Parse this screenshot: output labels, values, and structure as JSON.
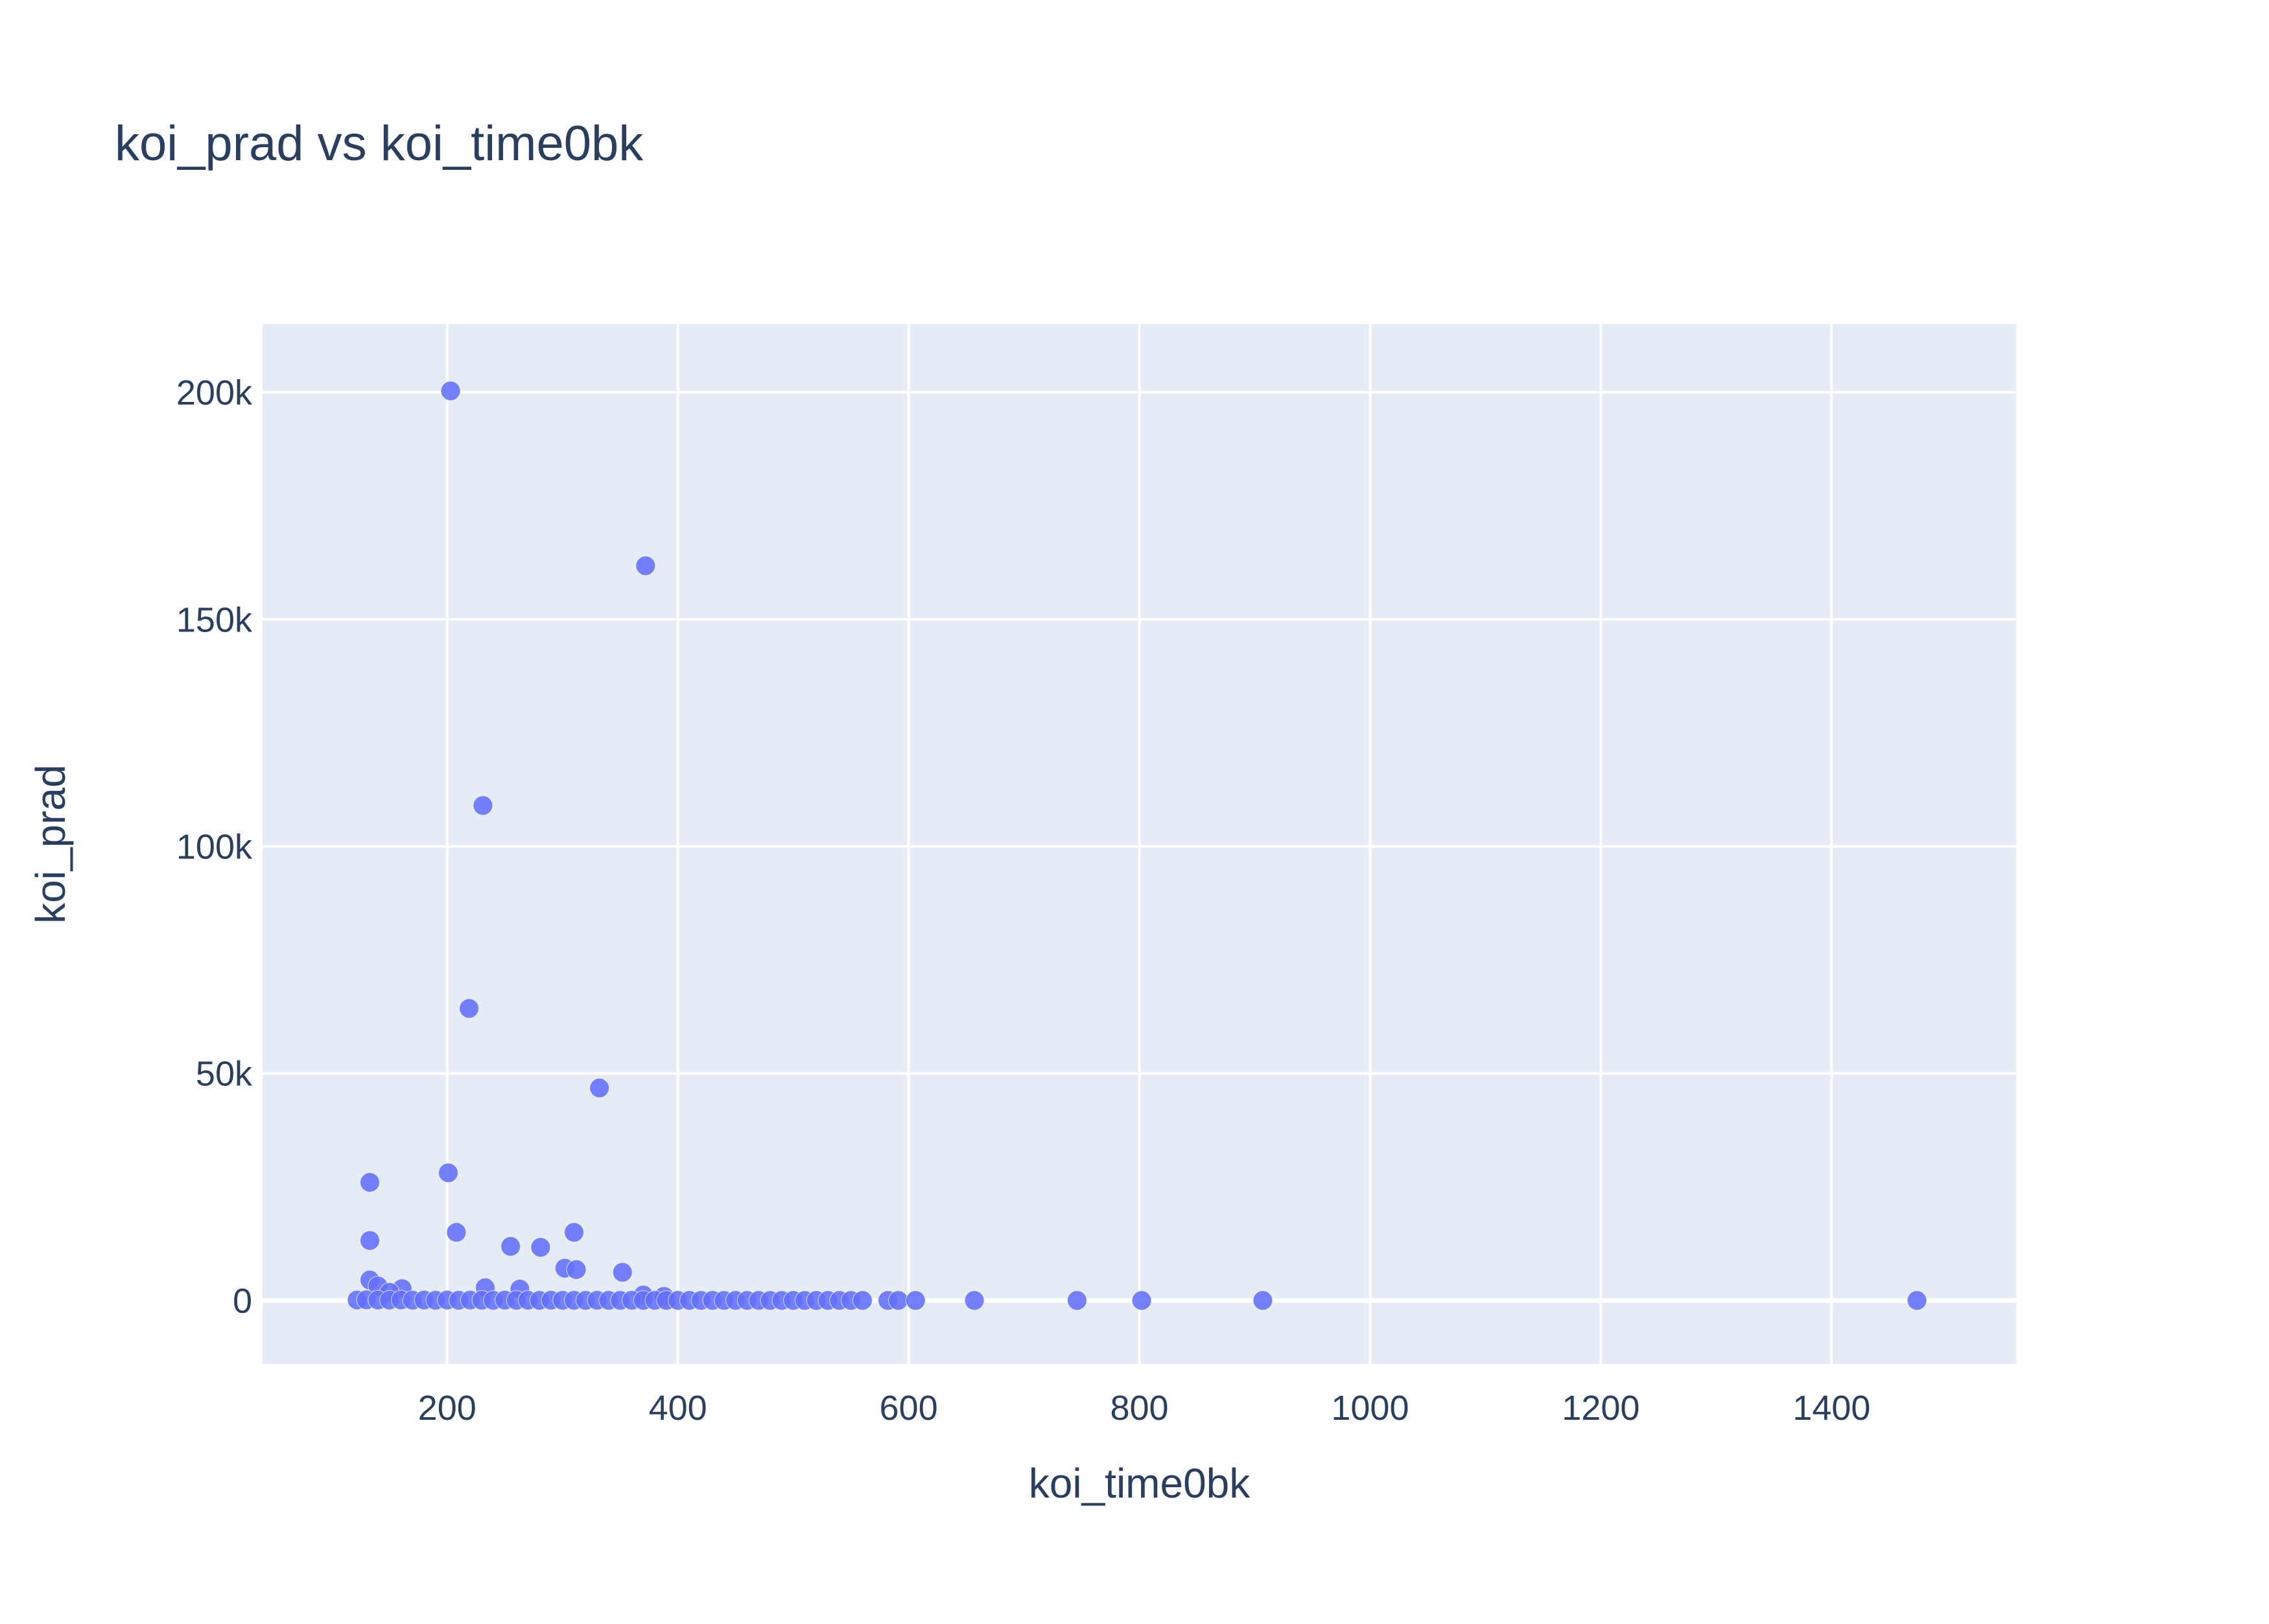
{
  "chart_data": {
    "type": "scatter",
    "title": "koi_prad vs koi_time0bk",
    "xlabel": "koi_time0bk",
    "ylabel": "koi_prad",
    "xlim": [
      40,
      1560
    ],
    "ylim": [
      -14000,
      215000
    ],
    "x_ticks": [
      200,
      400,
      600,
      800,
      1000,
      1200,
      1400
    ],
    "x_tick_labels": [
      "200",
      "400",
      "600",
      "800",
      "1000",
      "1200",
      "1400"
    ],
    "y_ticks": [
      0,
      50000,
      100000,
      150000,
      200000
    ],
    "y_tick_labels": [
      "0",
      "50k",
      "100k",
      "150k",
      "200k"
    ],
    "grid": true,
    "legend": "none",
    "colors": {
      "background": "#E5ECF6",
      "grid": "#FFFFFF",
      "marker": "#636EFA",
      "text": "#2A3F5F"
    },
    "points": [
      {
        "x": 203,
        "y": 200300
      },
      {
        "x": 372,
        "y": 161800
      },
      {
        "x": 231,
        "y": 109000
      },
      {
        "x": 219,
        "y": 64300
      },
      {
        "x": 332,
        "y": 46800
      },
      {
        "x": 201,
        "y": 28100
      },
      {
        "x": 133,
        "y": 26000
      },
      {
        "x": 133,
        "y": 13200
      },
      {
        "x": 208,
        "y": 15000
      },
      {
        "x": 310,
        "y": 15000
      },
      {
        "x": 255,
        "y": 11900
      },
      {
        "x": 281,
        "y": 11700
      },
      {
        "x": 302,
        "y": 7100
      },
      {
        "x": 312,
        "y": 6800
      },
      {
        "x": 352,
        "y": 6200
      },
      {
        "x": 133,
        "y": 4500
      },
      {
        "x": 140,
        "y": 3200
      },
      {
        "x": 161,
        "y": 2600
      },
      {
        "x": 233,
        "y": 2800
      },
      {
        "x": 263,
        "y": 2500
      },
      {
        "x": 150,
        "y": 1800
      },
      {
        "x": 370,
        "y": 1200
      },
      {
        "x": 388,
        "y": 900
      },
      {
        "x": 122,
        "y": 100
      },
      {
        "x": 130,
        "y": 150
      },
      {
        "x": 140,
        "y": 100
      },
      {
        "x": 150,
        "y": 80
      },
      {
        "x": 160,
        "y": 120
      },
      {
        "x": 170,
        "y": 60
      },
      {
        "x": 180,
        "y": 90
      },
      {
        "x": 190,
        "y": 50
      },
      {
        "x": 200,
        "y": 100
      },
      {
        "x": 210,
        "y": 40
      },
      {
        "x": 220,
        "y": 80
      },
      {
        "x": 230,
        "y": 60
      },
      {
        "x": 240,
        "y": 30
      },
      {
        "x": 250,
        "y": 70
      },
      {
        "x": 260,
        "y": 40
      },
      {
        "x": 270,
        "y": 50
      },
      {
        "x": 280,
        "y": 20
      },
      {
        "x": 290,
        "y": 60
      },
      {
        "x": 300,
        "y": 30
      },
      {
        "x": 310,
        "y": 40
      },
      {
        "x": 320,
        "y": 20
      },
      {
        "x": 330,
        "y": 50
      },
      {
        "x": 340,
        "y": 30
      },
      {
        "x": 350,
        "y": 20
      },
      {
        "x": 360,
        "y": 40
      },
      {
        "x": 370,
        "y": 20
      },
      {
        "x": 380,
        "y": 30
      },
      {
        "x": 390,
        "y": 10
      },
      {
        "x": 400,
        "y": 20
      },
      {
        "x": 410,
        "y": 15
      },
      {
        "x": 420,
        "y": 10
      },
      {
        "x": 430,
        "y": 20
      },
      {
        "x": 440,
        "y": 10
      },
      {
        "x": 450,
        "y": 15
      },
      {
        "x": 460,
        "y": 10
      },
      {
        "x": 470,
        "y": 12
      },
      {
        "x": 480,
        "y": 8
      },
      {
        "x": 490,
        "y": 10
      },
      {
        "x": 500,
        "y": 9
      },
      {
        "x": 510,
        "y": 7
      },
      {
        "x": 520,
        "y": 8
      },
      {
        "x": 530,
        "y": 6
      },
      {
        "x": 540,
        "y": 7
      },
      {
        "x": 550,
        "y": 5
      },
      {
        "x": 560,
        "y": 6
      },
      {
        "x": 582,
        "y": 5
      },
      {
        "x": 591,
        "y": 4
      },
      {
        "x": 606,
        "y": 4
      },
      {
        "x": 657,
        "y": 3
      },
      {
        "x": 746,
        "y": 3
      },
      {
        "x": 802,
        "y": 2
      },
      {
        "x": 907,
        "y": 2
      },
      {
        "x": 1474,
        "y": 2
      }
    ]
  }
}
